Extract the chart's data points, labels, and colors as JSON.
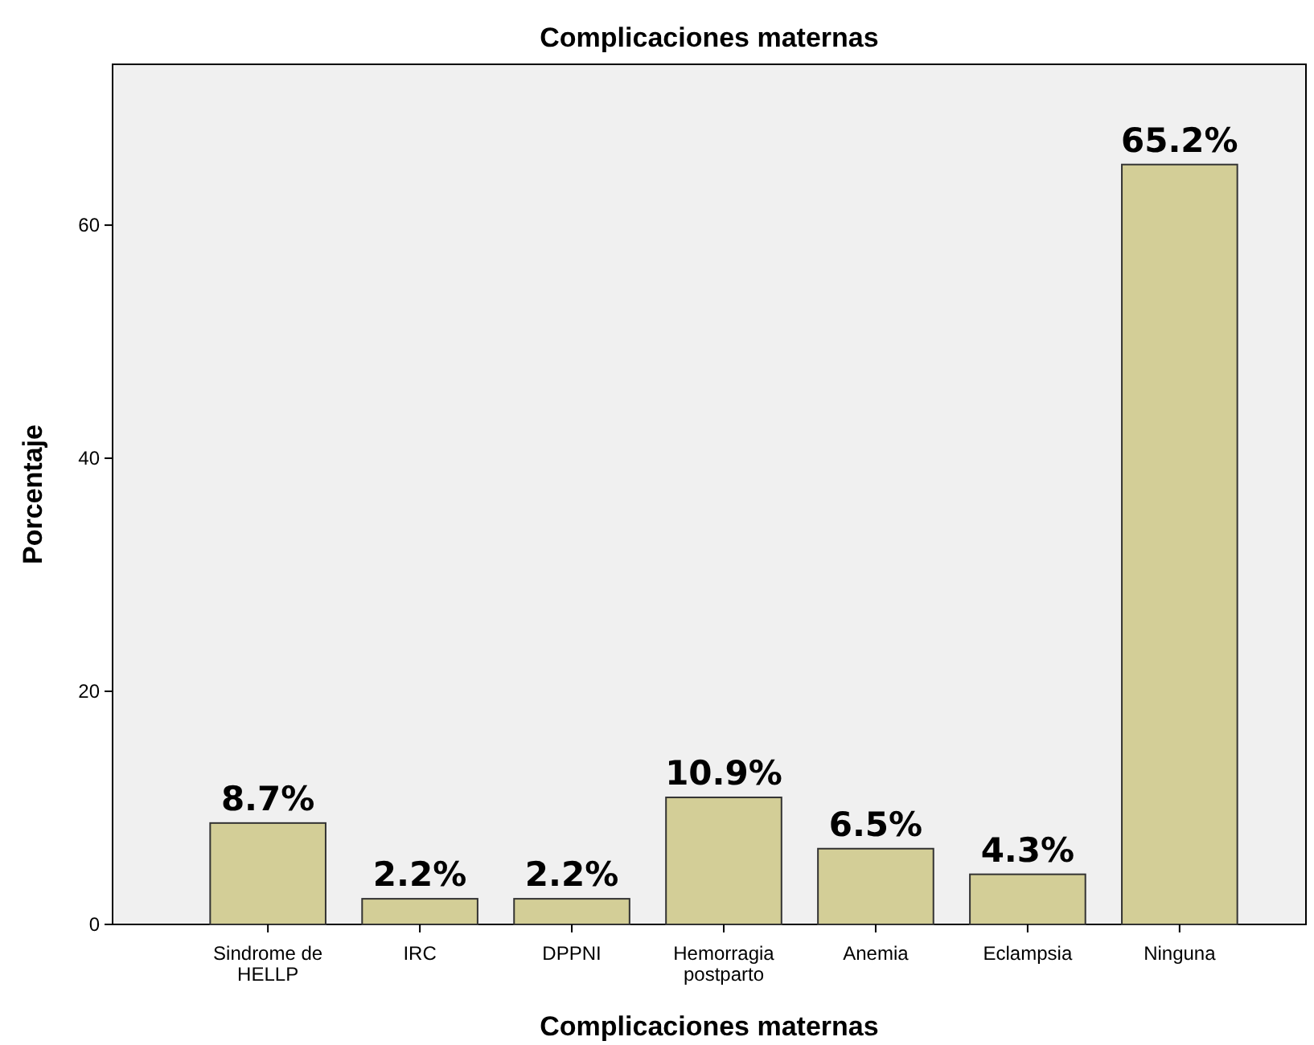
{
  "chart_data": {
    "type": "bar",
    "title": "Complicaciones maternas",
    "xlabel": "Complicaciones maternas",
    "ylabel": "Porcentaje",
    "categories": [
      "Sindrome de HELLP",
      "IRC",
      "DPPNI",
      "Hemorragia postparto",
      "Anemia",
      "Eclampsia",
      "Ninguna"
    ],
    "values": [
      8.7,
      2.2,
      2.2,
      10.9,
      6.5,
      4.3,
      65.2
    ],
    "value_labels": [
      "8.7%",
      "2.2%",
      "2.2%",
      "10.9%",
      "6.5%",
      "4.3%",
      "65.2%"
    ],
    "color": "#d3ce97",
    "ylim": [
      0,
      73.8
    ],
    "yticks": [
      0,
      20,
      40,
      60
    ],
    "grid": false
  }
}
